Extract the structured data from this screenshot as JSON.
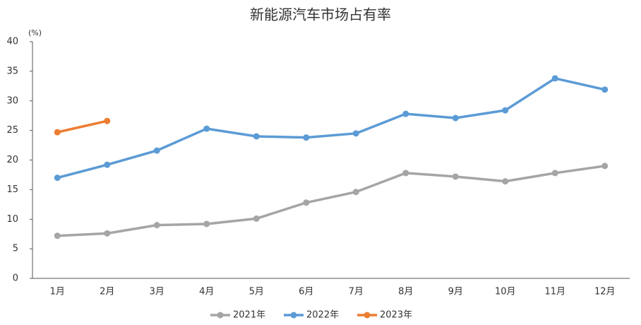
{
  "chart_data": {
    "type": "line",
    "title": "新能源汽车市场占有率",
    "y_unit": "(%)",
    "categories": [
      "1月",
      "2月",
      "3月",
      "4月",
      "5月",
      "6月",
      "7月",
      "8月",
      "9月",
      "10月",
      "11月",
      "12月"
    ],
    "series": [
      {
        "name": "2021年",
        "color": "#a5a5a5",
        "values": [
          7.2,
          7.6,
          9.0,
          9.2,
          10.1,
          12.8,
          14.6,
          17.8,
          17.2,
          16.4,
          17.8,
          19.0
        ]
      },
      {
        "name": "2022年",
        "color": "#5b9bd5",
        "values": [
          17.0,
          19.2,
          21.6,
          25.3,
          24.0,
          23.8,
          24.5,
          27.8,
          27.1,
          28.4,
          33.8,
          31.9
        ]
      },
      {
        "name": "2023年",
        "color": "#ed7d31",
        "values": [
          24.7,
          26.6,
          null,
          null,
          null,
          null,
          null,
          null,
          null,
          null,
          null,
          null
        ]
      }
    ],
    "ylim": [
      0,
      40
    ],
    "yticks": [
      0,
      5,
      10,
      15,
      20,
      25,
      30,
      35,
      40
    ],
    "grid": false,
    "legend": "bottom"
  }
}
